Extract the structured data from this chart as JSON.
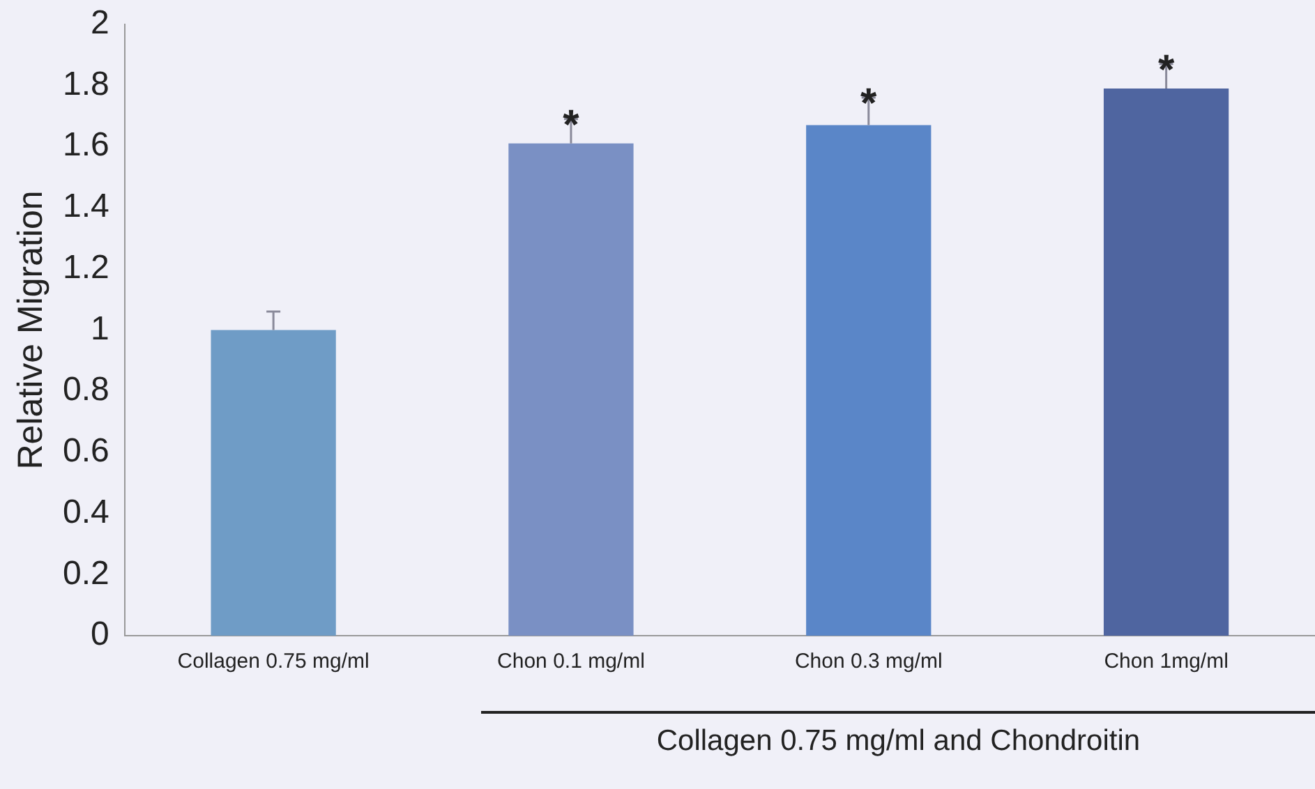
{
  "chart_data": {
    "type": "bar",
    "ylabel": "Relative Migration",
    "categories": [
      "Collagen 0.75 mg/ml",
      "Chon 0.1 mg/ml",
      "Chon 0.3 mg/ml",
      "Chon 1mg/ml"
    ],
    "values": [
      1.0,
      1.61,
      1.67,
      1.79
    ],
    "colors": [
      "#6f9cc6",
      "#7a90c4",
      "#5a86c8",
      "#4f65a0"
    ],
    "errors": [
      [
        1.0,
        1.06
      ],
      [
        1.61,
        1.69
      ],
      [
        1.67,
        1.76
      ],
      [
        1.79,
        1.87
      ]
    ],
    "ylim": [
      0,
      2
    ],
    "yticks": [
      0,
      0.2,
      0.4,
      0.6,
      0.8,
      1,
      1.2,
      1.4,
      1.6,
      1.8,
      2
    ],
    "grid": false,
    "legend": false,
    "annotations": [
      {
        "text": "*",
        "x": "Chon 0.1 mg/ml",
        "y": 1.69
      },
      {
        "text": "*",
        "x": "Chon 0.3 mg/ml",
        "y": 1.76
      },
      {
        "text": "*",
        "x": "Chon 1mg/ml",
        "y": 1.87
      },
      "Collagen 0.75 mg/ml and Chondroitin"
    ]
  }
}
